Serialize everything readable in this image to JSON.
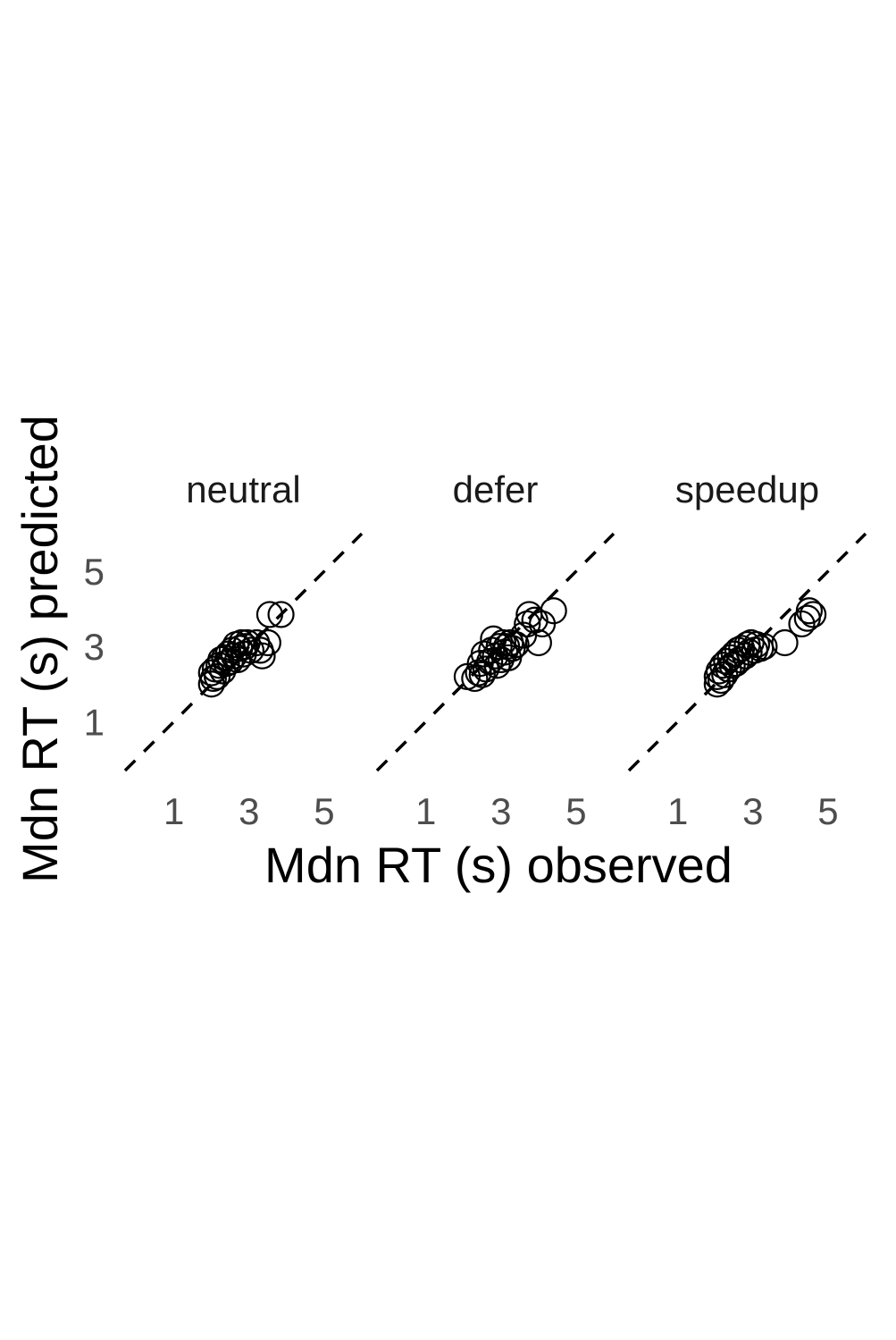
{
  "chart_data": {
    "type": "scatter",
    "xlabel": "Mdn RT (s) observed",
    "ylabel": "Mdn RT (s) predicted",
    "xlim": [
      -0.3,
      6.0
    ],
    "ylim": [
      -0.3,
      6.0
    ],
    "x_ticks": [
      "1",
      "3",
      "5"
    ],
    "y_ticks": [
      "1",
      "3",
      "5"
    ],
    "reference_line": "identity (dashed)",
    "grid": false,
    "facets": [
      {
        "label": "neutral",
        "points": [
          {
            "x": 2.0,
            "y": 2.0
          },
          {
            "x": 2.05,
            "y": 2.15
          },
          {
            "x": 2.0,
            "y": 2.3
          },
          {
            "x": 2.1,
            "y": 2.4
          },
          {
            "x": 2.15,
            "y": 2.2
          },
          {
            "x": 2.2,
            "y": 2.5
          },
          {
            "x": 2.25,
            "y": 2.65
          },
          {
            "x": 2.3,
            "y": 2.35
          },
          {
            "x": 2.35,
            "y": 2.7
          },
          {
            "x": 2.4,
            "y": 2.55
          },
          {
            "x": 2.45,
            "y": 2.8
          },
          {
            "x": 2.5,
            "y": 2.6
          },
          {
            "x": 2.55,
            "y": 2.9
          },
          {
            "x": 2.6,
            "y": 2.75
          },
          {
            "x": 2.65,
            "y": 3.05
          },
          {
            "x": 2.7,
            "y": 2.65
          },
          {
            "x": 2.75,
            "y": 2.95
          },
          {
            "x": 2.8,
            "y": 3.1
          },
          {
            "x": 2.85,
            "y": 2.8
          },
          {
            "x": 2.9,
            "y": 3.0
          },
          {
            "x": 2.95,
            "y": 3.1
          },
          {
            "x": 3.05,
            "y": 2.9
          },
          {
            "x": 3.2,
            "y": 3.1
          },
          {
            "x": 3.3,
            "y": 2.9
          },
          {
            "x": 3.35,
            "y": 2.75
          },
          {
            "x": 3.5,
            "y": 3.1
          },
          {
            "x": 3.55,
            "y": 3.85
          },
          {
            "x": 3.85,
            "y": 3.85
          }
        ]
      },
      {
        "label": "defer",
        "points": [
          {
            "x": 2.1,
            "y": 2.2
          },
          {
            "x": 2.3,
            "y": 2.15
          },
          {
            "x": 2.4,
            "y": 2.3
          },
          {
            "x": 2.45,
            "y": 2.55
          },
          {
            "x": 2.5,
            "y": 2.25
          },
          {
            "x": 2.55,
            "y": 2.8
          },
          {
            "x": 2.6,
            "y": 2.4
          },
          {
            "x": 2.7,
            "y": 2.6
          },
          {
            "x": 2.75,
            "y": 2.9
          },
          {
            "x": 2.8,
            "y": 3.2
          },
          {
            "x": 2.85,
            "y": 2.75
          },
          {
            "x": 2.9,
            "y": 2.5
          },
          {
            "x": 2.95,
            "y": 3.0
          },
          {
            "x": 3.0,
            "y": 2.65
          },
          {
            "x": 3.05,
            "y": 3.1
          },
          {
            "x": 3.1,
            "y": 2.85
          },
          {
            "x": 3.15,
            "y": 3.0
          },
          {
            "x": 3.2,
            "y": 2.7
          },
          {
            "x": 3.25,
            "y": 3.1
          },
          {
            "x": 3.3,
            "y": 2.95
          },
          {
            "x": 3.4,
            "y": 3.05
          },
          {
            "x": 3.6,
            "y": 3.3
          },
          {
            "x": 3.7,
            "y": 3.6
          },
          {
            "x": 3.75,
            "y": 3.85
          },
          {
            "x": 3.9,
            "y": 3.7
          },
          {
            "x": 4.1,
            "y": 3.6
          },
          {
            "x": 4.0,
            "y": 3.1
          },
          {
            "x": 4.4,
            "y": 3.95
          }
        ]
      },
      {
        "label": "speedup",
        "points": [
          {
            "x": 2.05,
            "y": 2.0
          },
          {
            "x": 2.05,
            "y": 2.2
          },
          {
            "x": 2.1,
            "y": 2.35
          },
          {
            "x": 2.15,
            "y": 2.1
          },
          {
            "x": 2.2,
            "y": 2.5
          },
          {
            "x": 2.25,
            "y": 2.25
          },
          {
            "x": 2.3,
            "y": 2.6
          },
          {
            "x": 2.35,
            "y": 2.4
          },
          {
            "x": 2.4,
            "y": 2.7
          },
          {
            "x": 2.45,
            "y": 2.5
          },
          {
            "x": 2.5,
            "y": 2.8
          },
          {
            "x": 2.55,
            "y": 2.55
          },
          {
            "x": 2.6,
            "y": 2.9
          },
          {
            "x": 2.65,
            "y": 2.65
          },
          {
            "x": 2.7,
            "y": 2.95
          },
          {
            "x": 2.8,
            "y": 2.75
          },
          {
            "x": 2.85,
            "y": 3.05
          },
          {
            "x": 2.9,
            "y": 2.85
          },
          {
            "x": 2.95,
            "y": 3.1
          },
          {
            "x": 3.05,
            "y": 2.9
          },
          {
            "x": 3.1,
            "y": 3.05
          },
          {
            "x": 3.2,
            "y": 2.95
          },
          {
            "x": 3.3,
            "y": 3.0
          },
          {
            "x": 3.85,
            "y": 3.1
          },
          {
            "x": 4.3,
            "y": 3.6
          },
          {
            "x": 4.45,
            "y": 3.75
          },
          {
            "x": 4.5,
            "y": 3.95
          },
          {
            "x": 4.6,
            "y": 3.85
          }
        ]
      }
    ]
  }
}
